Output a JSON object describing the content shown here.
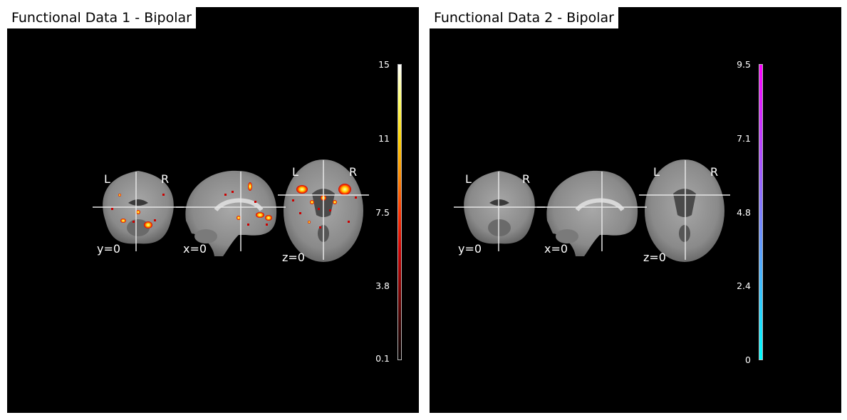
{
  "panels": [
    {
      "title": "Functional Data 1 - Bipolar",
      "colormap": "cold_hot",
      "colormap_stops": [
        "#000000",
        "#3a0000",
        "#8a0000",
        "#d10000",
        "#ff3300",
        "#ff8c00",
        "#ffd400",
        "#ffff66",
        "#ffffff"
      ],
      "colorbar_ticks": [
        "15",
        "11",
        "7.5",
        "3.8",
        "0.1"
      ],
      "views": [
        {
          "name": "coronal",
          "coord_label": "y=0",
          "left_label": "L",
          "right_label": "R"
        },
        {
          "name": "sagittal",
          "coord_label": "x=0"
        },
        {
          "name": "axial",
          "coord_label": "z=0",
          "left_label": "L",
          "right_label": "R"
        }
      ],
      "activation_visible": true
    },
    {
      "title": "Functional Data 2 - Bipolar",
      "colormap": "cool",
      "colormap_stops": [
        "#00ffff",
        "#ff00ff"
      ],
      "colorbar_ticks": [
        "9.5",
        "7.1",
        "4.8",
        "2.4",
        "0"
      ],
      "views": [
        {
          "name": "coronal",
          "coord_label": "y=0",
          "left_label": "L",
          "right_label": "R"
        },
        {
          "name": "sagittal",
          "coord_label": "x=0"
        },
        {
          "name": "axial",
          "coord_label": "z=0",
          "left_label": "L",
          "right_label": "R"
        }
      ],
      "activation_visible": false
    }
  ]
}
